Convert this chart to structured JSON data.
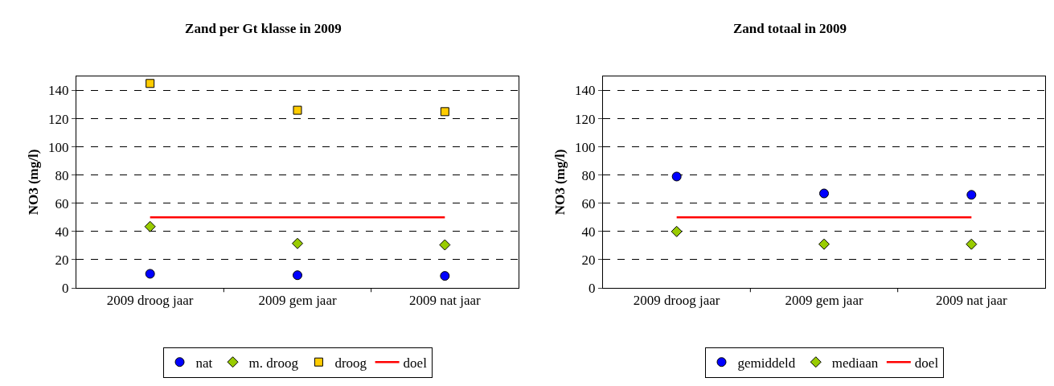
{
  "chart_data": [
    {
      "type": "scatter",
      "title": "Zand per Gt klasse in 2009",
      "ylabel": "NO3 (mg/l)",
      "categories": [
        "2009 droog jaar",
        "2009 gem jaar",
        "2009 nat jaar"
      ],
      "ylim": [
        0,
        150
      ],
      "yticks": [
        0,
        20,
        40,
        60,
        80,
        100,
        120,
        140
      ],
      "grid": "y",
      "legend": "bottom",
      "series": [
        {
          "name": "nat",
          "color": "#0000ff",
          "marker": "circle",
          "values": [
            10,
            9,
            8.5
          ]
        },
        {
          "name": "m. droog",
          "color": "#99cc00",
          "marker": "diamond",
          "values": [
            43.5,
            31.5,
            30.5
          ]
        },
        {
          "name": "droog",
          "color": "#ffcc00",
          "marker": "square",
          "values": [
            145,
            126,
            125
          ]
        },
        {
          "name": "doel",
          "type": "line",
          "color": "#ff0000",
          "marker": "none",
          "values": [
            50,
            50,
            50
          ]
        }
      ]
    },
    {
      "type": "scatter",
      "title": "Zand totaal in 2009",
      "ylabel": "NO3 (mg/l)",
      "categories": [
        "2009 droog jaar",
        "2009 gem jaar",
        "2009 nat jaar"
      ],
      "ylim": [
        0,
        150
      ],
      "yticks": [
        0,
        20,
        40,
        60,
        80,
        100,
        120,
        140
      ],
      "grid": "y",
      "legend": "bottom",
      "series": [
        {
          "name": "gemiddeld",
          "color": "#0000ff",
          "marker": "circle",
          "values": [
            79,
            67,
            66
          ]
        },
        {
          "name": "mediaan",
          "color": "#99cc00",
          "marker": "diamond",
          "values": [
            40,
            31,
            31
          ]
        },
        {
          "name": "doel",
          "type": "line",
          "color": "#ff0000",
          "marker": "none",
          "values": [
            50,
            50,
            50
          ]
        }
      ]
    }
  ]
}
